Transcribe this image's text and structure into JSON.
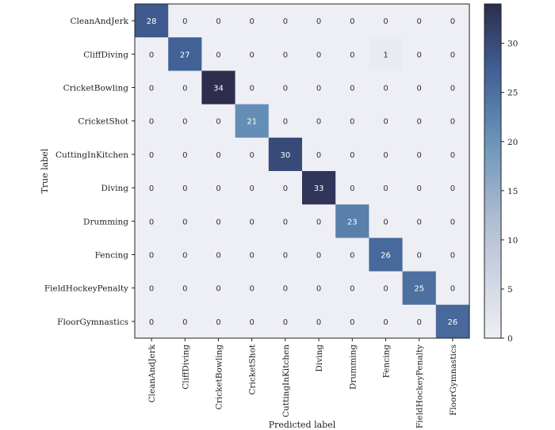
{
  "chart_data": {
    "type": "heatmap",
    "title": "",
    "xlabel": "Predicted label",
    "ylabel": "True label",
    "classes": [
      "CleanAndJerk",
      "CliffDiving",
      "CricketBowling",
      "CricketShot",
      "CuttingInKitchen",
      "Diving",
      "Drumming",
      "Fencing",
      "FieldHockeyPenalty",
      "FloorGymnastics"
    ],
    "matrix": [
      [
        28,
        0,
        0,
        0,
        0,
        0,
        0,
        0,
        0,
        0
      ],
      [
        0,
        27,
        0,
        0,
        0,
        0,
        0,
        1,
        0,
        0
      ],
      [
        0,
        0,
        34,
        0,
        0,
        0,
        0,
        0,
        0,
        0
      ],
      [
        0,
        0,
        0,
        21,
        0,
        0,
        0,
        0,
        0,
        0
      ],
      [
        0,
        0,
        0,
        0,
        30,
        0,
        0,
        0,
        0,
        0
      ],
      [
        0,
        0,
        0,
        0,
        0,
        33,
        0,
        0,
        0,
        0
      ],
      [
        0,
        0,
        0,
        0,
        0,
        0,
        23,
        0,
        0,
        0
      ],
      [
        0,
        0,
        0,
        0,
        0,
        0,
        0,
        26,
        0,
        0
      ],
      [
        0,
        0,
        0,
        0,
        0,
        0,
        0,
        0,
        25,
        0
      ],
      [
        0,
        0,
        0,
        0,
        0,
        0,
        0,
        0,
        0,
        26
      ]
    ],
    "colorbar": {
      "min": 0,
      "max": 34,
      "ticks": [
        0,
        5,
        10,
        15,
        20,
        25,
        30
      ]
    },
    "colors": {
      "low": "#eeeef5",
      "high": "#2d2d4e",
      "text_light": "#ffffff",
      "text_dark": "#333333",
      "axis": "#222222"
    }
  }
}
